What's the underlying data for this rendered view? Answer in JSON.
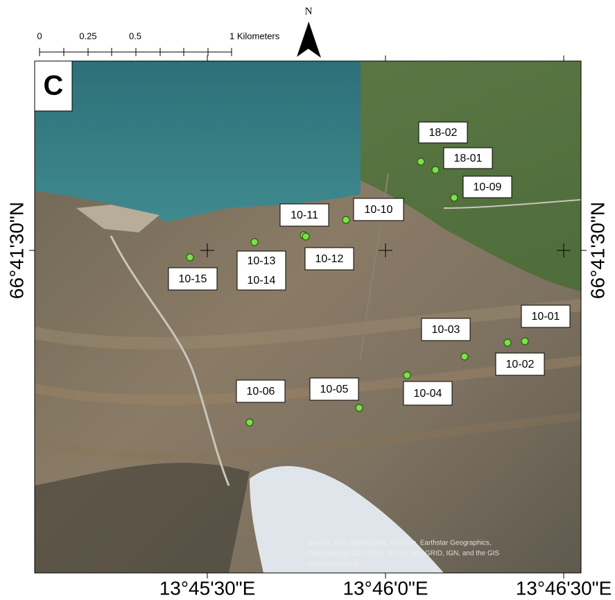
{
  "panel_label": "C",
  "north_arrow": "N",
  "scale_bar": {
    "labels": [
      "0",
      "0.25",
      "0.5",
      "1 Kilometers"
    ]
  },
  "longitude_labels": [
    "13°45'30\"E",
    "13°46'0\"E",
    "13°46'30\"E"
  ],
  "latitude_labels": {
    "left": "66°41'30\"N",
    "right": "66°41'30\"N"
  },
  "site_labels": [
    "18-02",
    "18-01",
    "10-09",
    "10-10",
    "10-11",
    "10-12",
    "10-13",
    "10-14",
    "10-15",
    "10-03",
    "10-01",
    "10-02",
    "10-04",
    "10-05",
    "10-06"
  ],
  "attribution": [
    "Source: Esri, DigitalGlobe, GeoEye, Earthstar Geographics,",
    "CNES/Airbus DS, USDA, USGS, AeroGRID, IGN, and the GIS",
    "User Community"
  ]
}
